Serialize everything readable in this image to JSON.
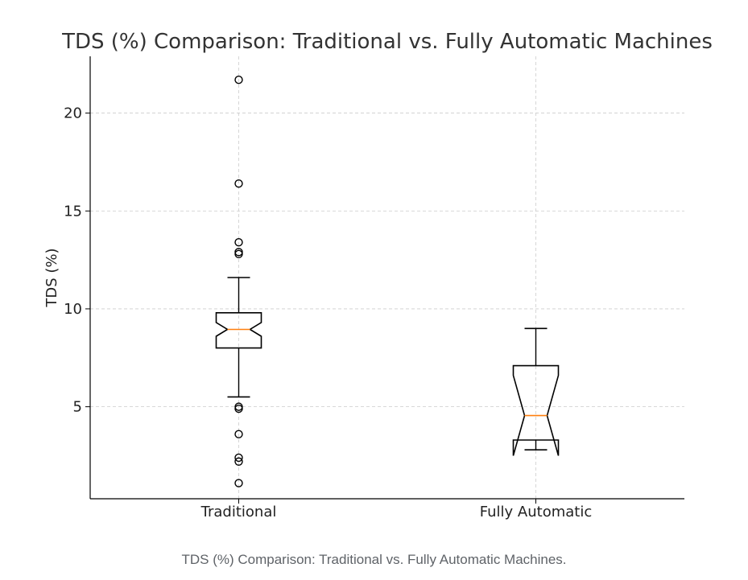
{
  "chart_data": {
    "type": "boxplot",
    "title": "TDS (%) Comparison: Traditional vs. Fully Automatic Machines",
    "xlabel": "",
    "ylabel": "TDS (%)",
    "ylim": [
      0.3,
      22.9
    ],
    "yticks": [
      "5",
      "10",
      "15",
      "20"
    ],
    "grid": true,
    "notched": true,
    "categories": [
      "Traditional",
      "Fully Automatic"
    ],
    "boxes": [
      {
        "category": "Traditional",
        "whisker_low": 5.5,
        "q1": 8.0,
        "median": 8.95,
        "q3": 9.8,
        "whisker_high": 11.6,
        "notch_low": 8.6,
        "notch_high": 9.3,
        "outliers": [
          21.7,
          16.4,
          13.4,
          12.9,
          12.8,
          5.0,
          4.9,
          3.6,
          2.4,
          2.2,
          1.1
        ]
      },
      {
        "category": "Fully Automatic",
        "whisker_low": 2.8,
        "q1": 3.3,
        "median": 4.55,
        "q3": 7.1,
        "whisker_high": 9.0,
        "notch_low": 2.5,
        "notch_high": 6.6,
        "outliers": []
      }
    ],
    "colors": {
      "box": "#000000",
      "median": "#ff7f0e",
      "grid": "#cccccc",
      "text": "#222222"
    }
  },
  "caption": "TDS (%) Comparison: Traditional vs. Fully Automatic Machines."
}
